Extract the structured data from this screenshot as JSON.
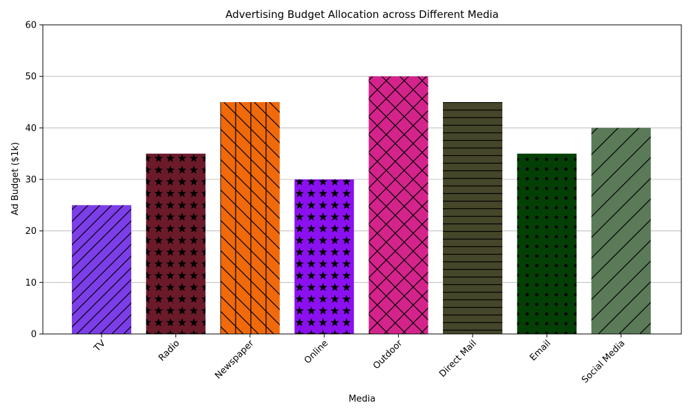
{
  "chart_data": {
    "type": "bar",
    "title": "Advertising Budget Allocation across Different Media",
    "xlabel": "Media",
    "ylabel": "Ad Budget ($1k)",
    "categories": [
      "TV",
      "Radio",
      "Newspaper",
      "Online",
      "Outdoor",
      "Direct Mail",
      "Email",
      "Social Media"
    ],
    "values": [
      25,
      35,
      45,
      30,
      50,
      45,
      35,
      40
    ],
    "colors": [
      "#7b3ee8",
      "#6b1a2a",
      "#f0690a",
      "#8b10f0",
      "#d4248c",
      "#45462a",
      "#043f05",
      "#5a7a58"
    ],
    "hatches": [
      "slash",
      "star",
      "backslash-vertical",
      "star",
      "cross",
      "horizontal",
      "dots",
      "slash-wide"
    ],
    "ylim": [
      0,
      60
    ],
    "yticks": [
      "0",
      "10",
      "20",
      "30",
      "40",
      "50",
      "60"
    ],
    "grid": "y"
  }
}
